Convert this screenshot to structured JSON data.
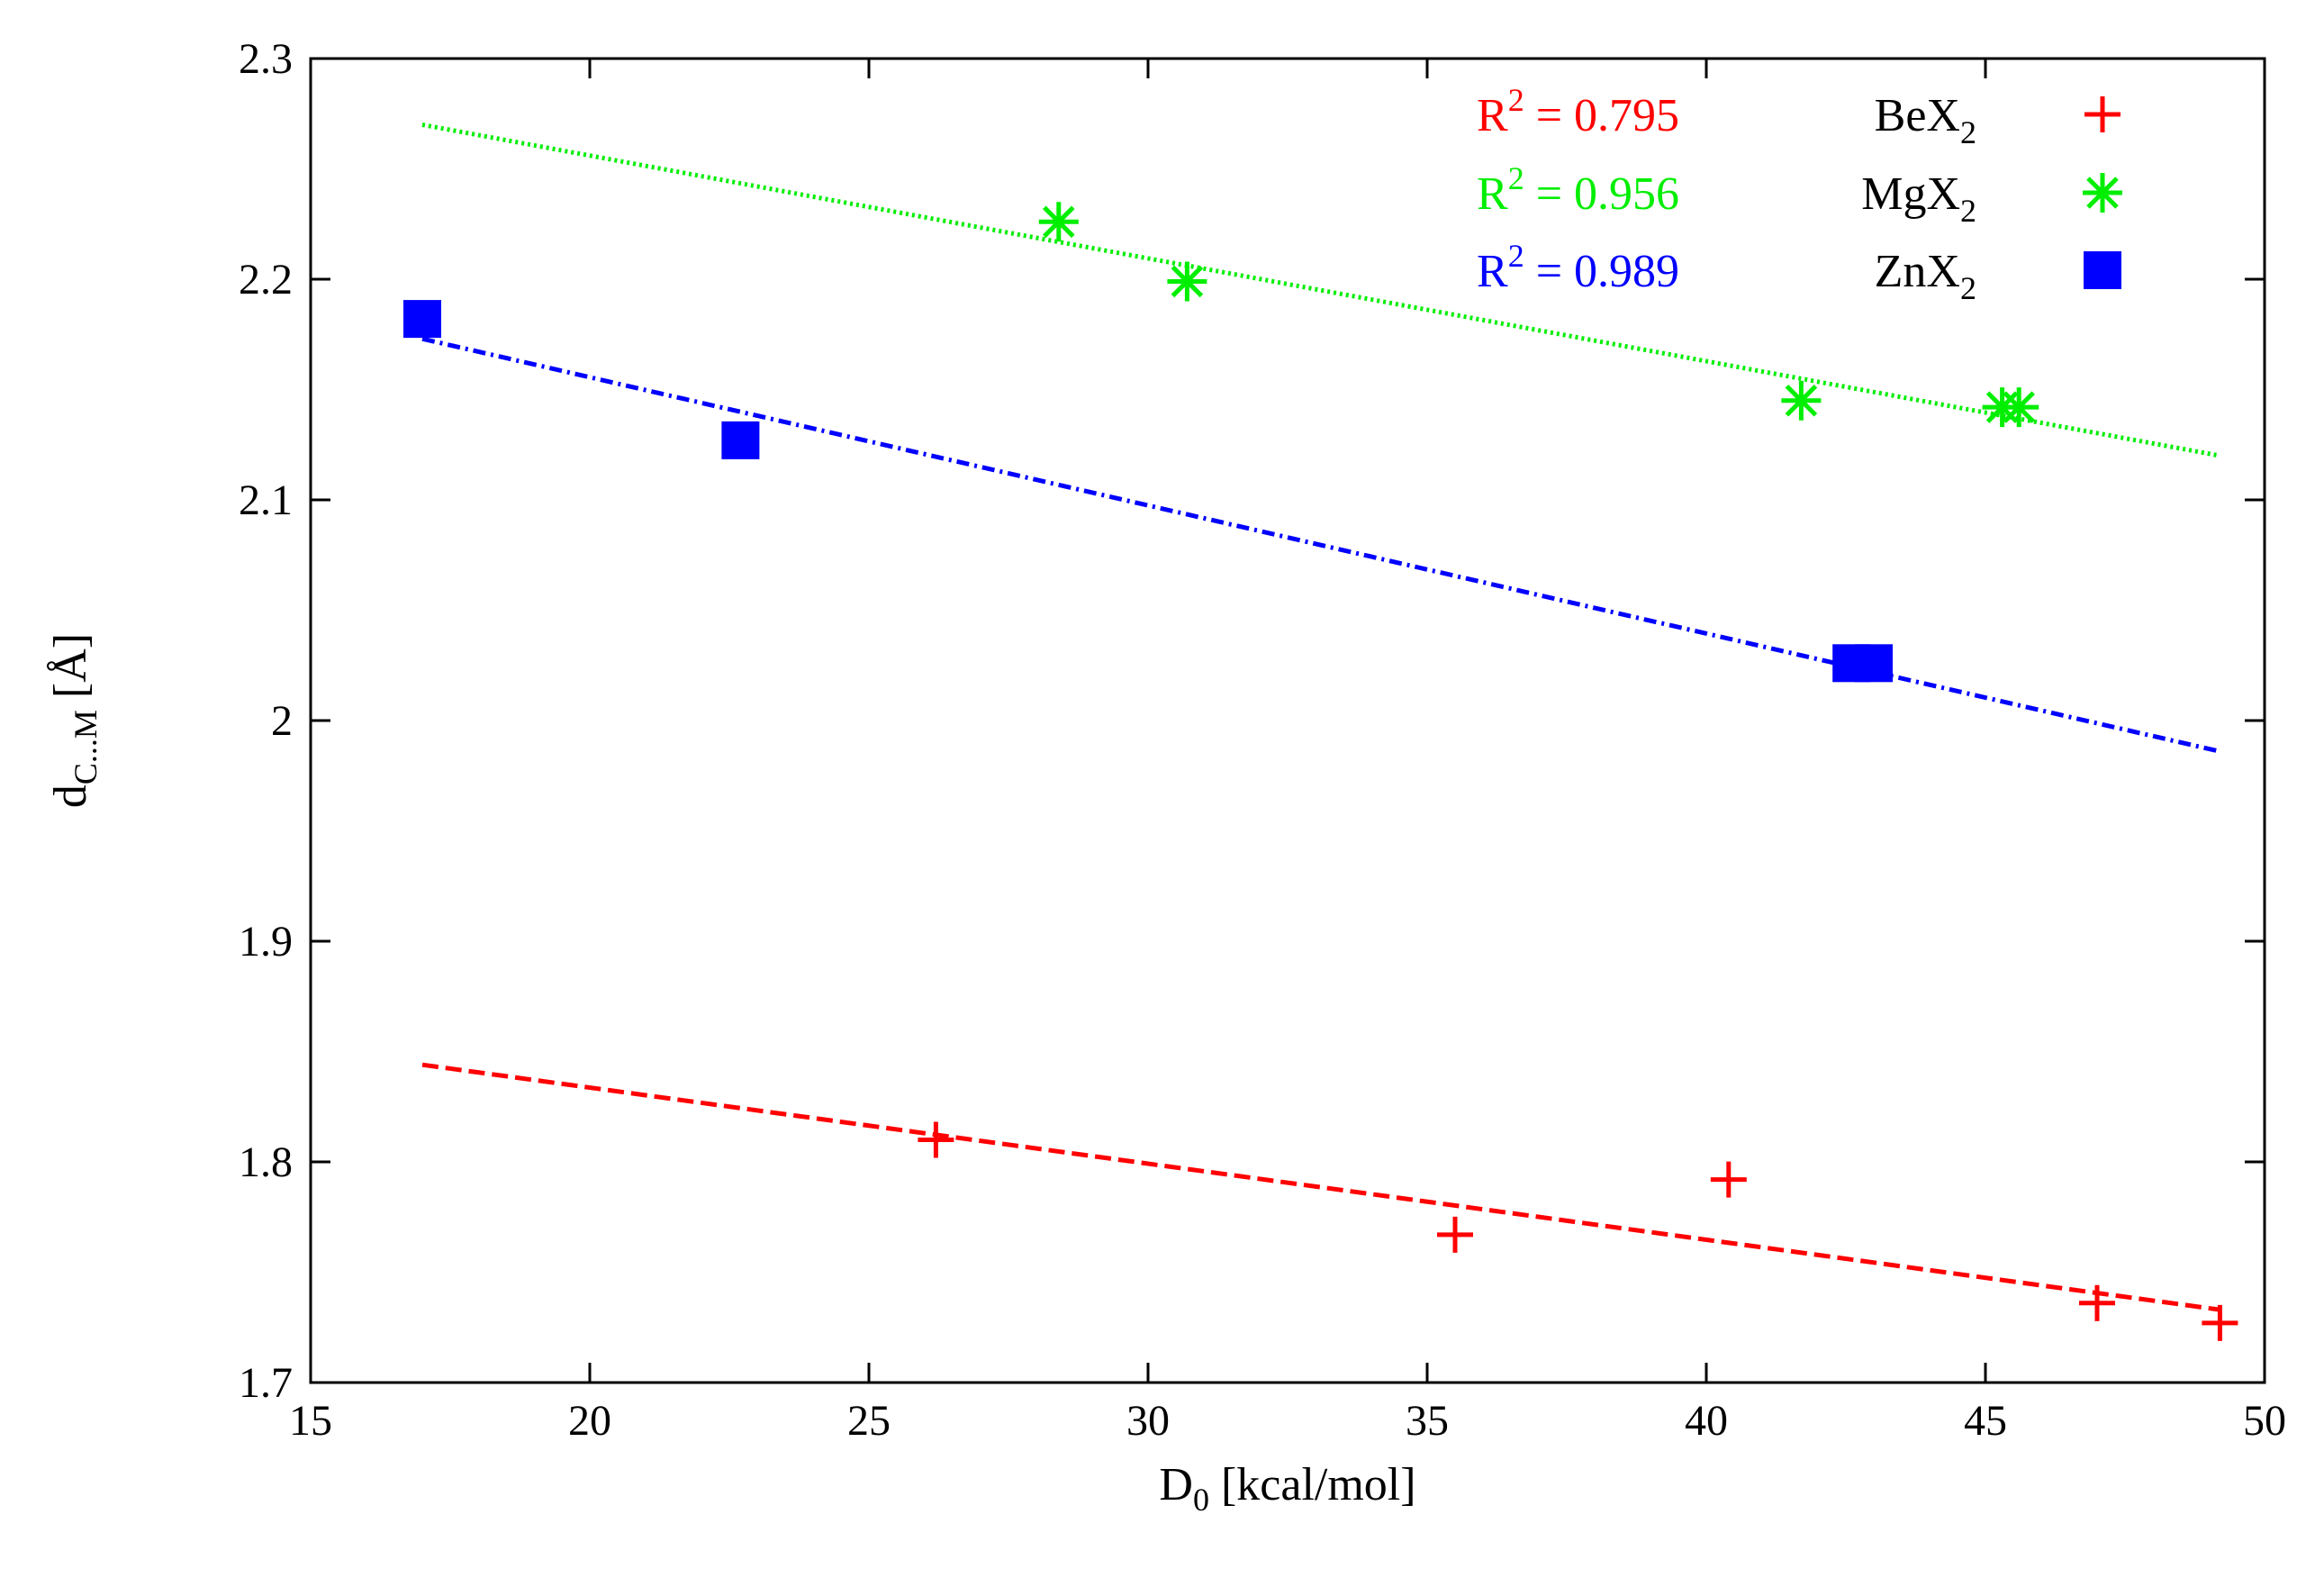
{
  "chart_data": {
    "type": "scatter",
    "title": "",
    "xlabel": {
      "main": "D",
      "sub": "0",
      "rest": " [kcal/mol]"
    },
    "ylabel": {
      "main": "d",
      "sub": "C...M",
      "rest": " [Å]"
    },
    "xlim": [
      15,
      50
    ],
    "ylim": [
      1.7,
      2.3
    ],
    "xticks": [
      15,
      20,
      25,
      30,
      35,
      40,
      45,
      50
    ],
    "yticks": [
      1.7,
      1.8,
      1.9,
      2.0,
      2.1,
      2.2,
      2.3
    ],
    "xtick_labels": [
      "15",
      "20",
      "25",
      "30",
      "35",
      "40",
      "45",
      "50"
    ],
    "ytick_labels": [
      "1.7",
      "1.8",
      "1.9",
      "2",
      "2.1",
      "2.2",
      "2.3"
    ],
    "grid": false,
    "legend_position": "top-right",
    "series": [
      {
        "name": "BeX2",
        "label_main": "BeX",
        "label_sub": "2",
        "color": "#ff0000",
        "marker": "plus",
        "r2_label": "R",
        "r2_sup": "2",
        "r2_value": " = 0.795",
        "points": [
          [
            26.2,
            1.81
          ],
          [
            35.5,
            1.767
          ],
          [
            40.4,
            1.792
          ],
          [
            47.0,
            1.736
          ],
          [
            49.2,
            1.727
          ]
        ],
        "fit": {
          "x": [
            17.0,
            49.2
          ],
          "y": [
            1.844,
            1.733
          ],
          "style": "dashed"
        }
      },
      {
        "name": "MgX2",
        "label_main": "MgX",
        "label_sub": "2",
        "color": "#00ee00",
        "marker": "star",
        "r2_label": "R",
        "r2_sup": "2",
        "r2_value": " = 0.956",
        "points": [
          [
            28.4,
            2.226
          ],
          [
            30.7,
            2.199
          ],
          [
            41.7,
            2.145
          ],
          [
            45.3,
            2.142
          ],
          [
            45.6,
            2.142
          ]
        ],
        "fit": {
          "x": [
            17.0,
            49.2
          ],
          "y": [
            2.27,
            2.12
          ],
          "style": "dotted"
        }
      },
      {
        "name": "ZnX2",
        "label_main": "ZnX",
        "label_sub": "2",
        "color": "#0000ff",
        "marker": "square",
        "r2_label": "R",
        "r2_sup": "2",
        "r2_value": " = 0.989",
        "points": [
          [
            17.0,
            2.182
          ],
          [
            22.7,
            2.127
          ],
          [
            42.6,
            2.026
          ],
          [
            43.0,
            2.026
          ]
        ],
        "fit": {
          "x": [
            17.0,
            49.2
          ],
          "y": [
            2.173,
            1.986
          ],
          "style": "dashdot"
        }
      }
    ]
  }
}
